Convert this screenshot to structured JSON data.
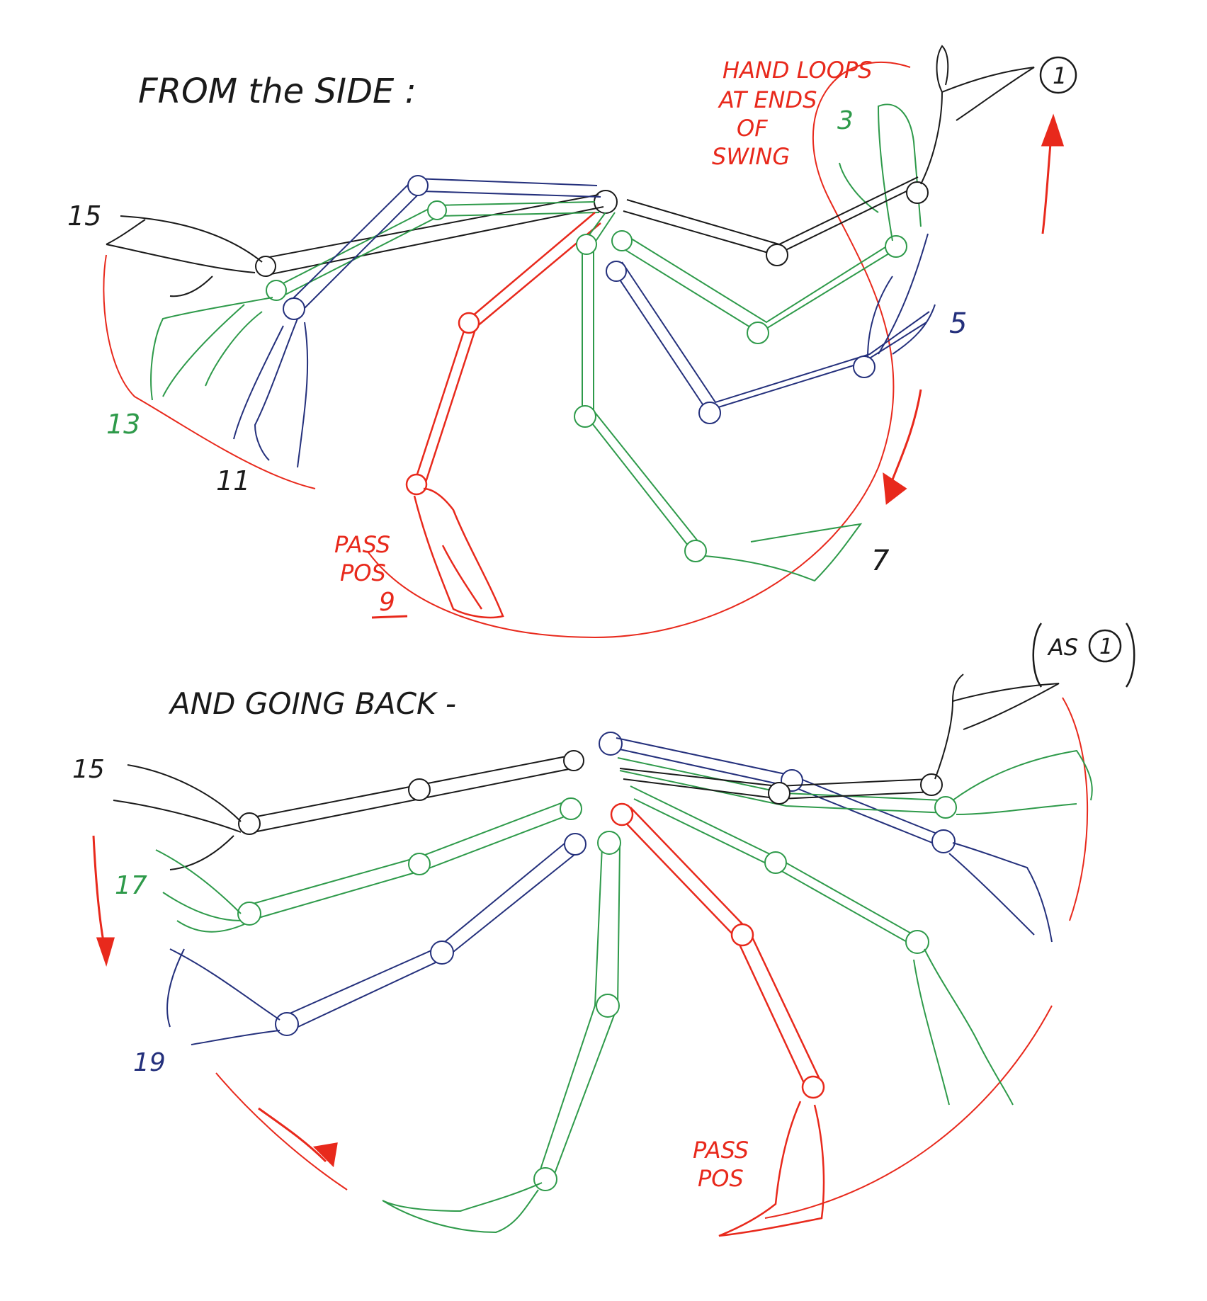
{
  "colors": {
    "paper": "#ffffff",
    "black": "#1a1a1a",
    "red": "#e8291c",
    "green": "#2e9a4a",
    "blue": "#24307c"
  },
  "top": {
    "title": "FROM the SIDE :",
    "note_lines": [
      "HAND LOOPS",
      "AT ENDS",
      "OF",
      "SWING"
    ],
    "circled_number": "1",
    "drawings": {
      "d1": "1",
      "d3": "3",
      "d5": "5",
      "d7": "7",
      "d9": "9",
      "d11": "11",
      "d13": "13",
      "d15": "15"
    },
    "pass_pos": [
      "PASS",
      "POS"
    ]
  },
  "bottom": {
    "title": "AND GOING BACK -",
    "as_label": "AS",
    "as_circled_number": "1",
    "drawings": {
      "d15": "15",
      "d17": "17",
      "d19": "19"
    },
    "pass_pos": [
      "PASS",
      "POS"
    ]
  }
}
